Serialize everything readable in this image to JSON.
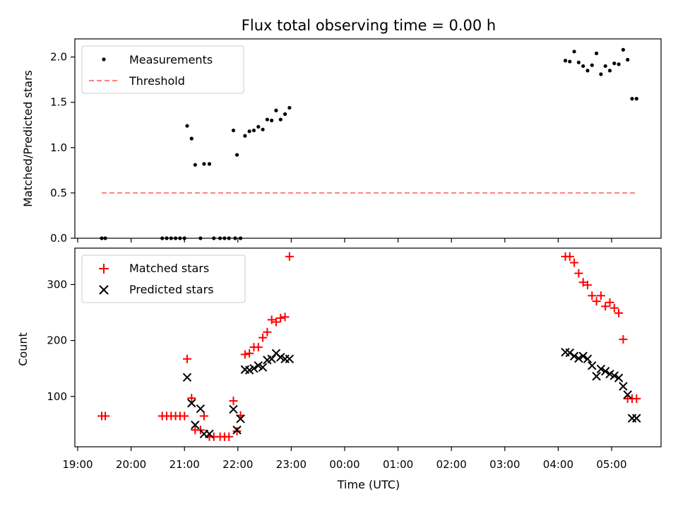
{
  "chart_data": {
    "type": "scatter",
    "title": "Flux total observing time = 0.00 h",
    "xlabel": "Time (UTC)",
    "x_ticks": [
      "19:00",
      "20:00",
      "21:00",
      "22:00",
      "23:00",
      "00:00",
      "01:00",
      "02:00",
      "03:00",
      "04:00",
      "05:00"
    ],
    "panels": [
      {
        "id": "ratio",
        "ylabel": "Matched/Predicted stars",
        "ylim": [
          0,
          2.2
        ],
        "y_ticks": [
          "0.0",
          "0.5",
          "1.0",
          "1.5",
          "2.0"
        ],
        "legend_position": "upper-left",
        "series": [
          {
            "name": "Measurements",
            "marker": "dot",
            "color": "#000000",
            "x": [
              "19:27",
              "19:31",
              "20:35",
              "20:40",
              "20:45",
              "20:50",
              "20:55",
              "21:00",
              "21:03",
              "21:08",
              "21:12",
              "21:18",
              "21:22",
              "21:28",
              "21:33",
              "21:40",
              "21:45",
              "21:50",
              "21:55",
              "21:57",
              "21:59",
              "22:03",
              "22:08",
              "22:13",
              "22:18",
              "22:23",
              "22:28",
              "22:33",
              "22:38",
              "22:43",
              "22:48",
              "22:53",
              "22:58",
              "04:08",
              "04:13",
              "04:18",
              "04:23",
              "04:28",
              "04:33",
              "04:38",
              "04:43",
              "04:48",
              "04:53",
              "04:58",
              "05:03",
              "05:08",
              "05:13",
              "05:18",
              "05:23",
              "05:28"
            ],
            "y": [
              0.0,
              0.0,
              0.0,
              0.0,
              0.0,
              0.0,
              0.0,
              0.0,
              1.24,
              1.1,
              0.81,
              0.0,
              0.82,
              0.82,
              0.0,
              0.0,
              0.0,
              0.0,
              1.19,
              0.0,
              0.92,
              0.0,
              1.13,
              1.18,
              1.19,
              1.23,
              1.2,
              1.31,
              1.3,
              1.41,
              1.31,
              1.37,
              1.44,
              1.96,
              1.95,
              2.06,
              1.94,
              1.9,
              1.85,
              1.91,
              2.04,
              1.81,
              1.9,
              1.85,
              1.93,
              1.92,
              2.08,
              1.97,
              1.54,
              1.54
            ]
          },
          {
            "name": "Threshold",
            "line_style": "dashed",
            "color": "#ff7f7f",
            "x": [
              "19:27",
              "05:28"
            ],
            "y": [
              0.5,
              0.5
            ]
          }
        ]
      },
      {
        "id": "counts",
        "ylabel": "Count",
        "ylim": [
          10,
          365
        ],
        "y_ticks": [
          "100",
          "200",
          "300"
        ],
        "legend_position": "upper-left",
        "series": [
          {
            "name": "Matched stars",
            "marker": "plus",
            "color": "#ff0000",
            "x": [
              "19:27",
              "19:31",
              "20:35",
              "20:40",
              "20:45",
              "20:50",
              "20:55",
              "21:00",
              "21:03",
              "21:08",
              "21:12",
              "21:18",
              "21:22",
              "21:28",
              "21:33",
              "21:40",
              "21:45",
              "21:50",
              "21:55",
              "21:59",
              "22:03",
              "22:08",
              "22:13",
              "22:18",
              "22:23",
              "22:28",
              "22:33",
              "22:38",
              "22:43",
              "22:48",
              "22:53",
              "22:58",
              "04:08",
              "04:13",
              "04:18",
              "04:23",
              "04:28",
              "04:33",
              "04:38",
              "04:43",
              "04:48",
              "04:53",
              "04:58",
              "05:03",
              "05:08",
              "05:13",
              "05:18",
              "05:23",
              "05:28"
            ],
            "y": [
              65,
              65,
              65,
              65,
              65,
              65,
              65,
              65,
              167,
              97,
              40,
              40,
              65,
              28,
              28,
              28,
              28,
              28,
              92,
              38,
              66,
              175,
              177,
              188,
              188,
              205,
              215,
              237,
              233,
              240,
              242,
              350,
              350,
              350,
              339,
              320,
              304,
              299,
              280,
              270,
              280,
              261,
              268,
              258,
              249,
              202,
              96,
              96,
              96
            ]
          },
          {
            "name": "Predicted stars",
            "marker": "x",
            "color": "#000000",
            "x": [
              "21:03",
              "21:08",
              "21:12",
              "21:18",
              "21:22",
              "21:28",
              "21:55",
              "21:59",
              "22:03",
              "22:08",
              "22:13",
              "22:18",
              "22:23",
              "22:28",
              "22:33",
              "22:38",
              "22:43",
              "22:48",
              "22:53",
              "22:58",
              "04:08",
              "04:13",
              "04:18",
              "04:23",
              "04:28",
              "04:33",
              "04:38",
              "04:43",
              "04:48",
              "04:53",
              "04:58",
              "05:03",
              "05:08",
              "05:13",
              "05:18",
              "05:23",
              "05:28"
            ],
            "y": [
              134,
              88,
              49,
              78,
              33,
              33,
              77,
              40,
              60,
              148,
              147,
              150,
              155,
              152,
              165,
              167,
              177,
              170,
              167,
              167,
              179,
              178,
              172,
              168,
              172,
              167,
              155,
              136,
              149,
              145,
              140,
              137,
              133,
              118,
              103,
              61,
              61
            ]
          }
        ]
      }
    ]
  }
}
